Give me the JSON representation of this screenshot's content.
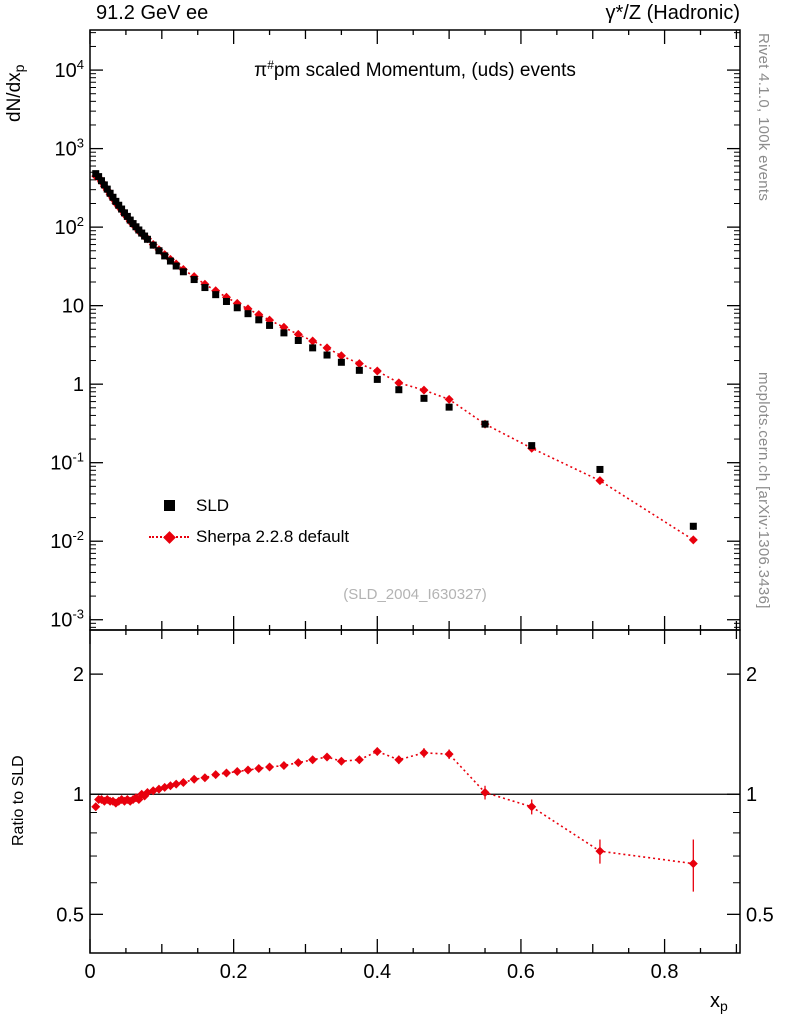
{
  "header": {
    "left": "91.2 GeV ee",
    "right": "γ*/Z (Hadronic)"
  },
  "title": {
    "prefix": "π",
    "sup": "#",
    "rest": "pm scaled Momentum, (uds) events"
  },
  "watermark": "(SLD_2004_I630327)",
  "side_notes": {
    "top": "Rivet 4.1.0,  100k events",
    "bottom": "mcplots.cern.ch [arXiv:1306.3436]"
  },
  "labels": {
    "y_main": {
      "text": "dN/dx",
      "sub": "p"
    },
    "y_ratio": "Ratio to SLD",
    "x": {
      "text": "x",
      "sub": "p"
    }
  },
  "legend": [
    {
      "label": "SLD",
      "marker": "filled-square",
      "color": "#000000"
    },
    {
      "label": "Sherpa 2.2.8 default",
      "marker": "filled-diamond",
      "color": "#e8000d",
      "line": "dotted"
    }
  ],
  "colors": {
    "data": "#000000",
    "mc": "#e8000d",
    "annotation": "#8c8c8c",
    "watermark": "#b3b3b3"
  },
  "axes": {
    "x_ticks": [
      0,
      0.2,
      0.4,
      0.6,
      0.8
    ],
    "x_minor_step": 0.05,
    "y_main_tick_exponents": [
      -3,
      -2,
      -1,
      0,
      1,
      2,
      3,
      4
    ],
    "y_ratio_ticks": [
      0.5,
      1,
      2
    ],
    "y_ratio_minor_ticks": [
      0.4,
      0.6,
      0.7,
      0.8,
      0.9
    ]
  },
  "chart_data": {
    "type": "scatter",
    "title": "π#pm scaled Momentum, (uds) events",
    "xlabel": "x_p",
    "ylabel_main": "dN/dx_p",
    "ylabel_ratio": "Ratio to SLD",
    "x_range": [
      0,
      0.905
    ],
    "y_main_scale": "log",
    "y_main_range": [
      0.00074,
      32400
    ],
    "y_ratio_scale": "log",
    "y_ratio_range": [
      0.4,
      2.58
    ],
    "legend_position": "left-middle",
    "grid": false,
    "x": [
      0.008,
      0.012,
      0.016,
      0.02,
      0.024,
      0.028,
      0.032,
      0.036,
      0.04,
      0.044,
      0.048,
      0.052,
      0.056,
      0.06,
      0.064,
      0.068,
      0.072,
      0.076,
      0.08,
      0.088,
      0.096,
      0.104,
      0.112,
      0.12,
      0.13,
      0.145,
      0.16,
      0.175,
      0.19,
      0.205,
      0.22,
      0.235,
      0.25,
      0.27,
      0.29,
      0.31,
      0.33,
      0.35,
      0.375,
      0.4,
      0.43,
      0.465,
      0.5,
      0.55,
      0.615,
      0.71,
      0.84
    ],
    "series": [
      {
        "name": "SLD",
        "marker": "filled-square",
        "color": "#000000",
        "values": [
          480,
          440,
          390,
          345,
          305,
          270,
          240,
          213,
          190,
          170,
          152,
          137,
          123,
          111,
          101,
          92,
          84,
          77,
          70,
          59,
          50,
          43,
          37,
          32,
          27,
          21.5,
          17,
          13.8,
          11.3,
          9.4,
          7.9,
          6.6,
          5.6,
          4.5,
          3.6,
          2.9,
          2.35,
          1.9,
          1.5,
          1.15,
          0.85,
          0.66,
          0.51,
          0.31,
          0.165,
          0.082,
          0.0155
        ]
      },
      {
        "name": "Sherpa 2.2.8 default",
        "marker": "filled-diamond",
        "color": "#e8000d",
        "line": "dotted",
        "values": [
          446,
          427,
          378,
          331,
          296,
          259,
          230,
          202,
          182,
          165,
          146,
          133,
          118,
          108,
          99,
          89,
          84,
          76,
          71,
          60,
          51.5,
          44.7,
          38.9,
          33.9,
          28.9,
          23.4,
          18.7,
          15.5,
          12.8,
          10.7,
          9.1,
          7.7,
          6.55,
          5.3,
          4.3,
          3.55,
          2.9,
          2.3,
          1.83,
          1.47,
          1.04,
          0.84,
          0.64,
          0.31,
          0.153,
          0.059,
          0.0104
        ]
      }
    ],
    "ratio": {
      "name": "Sherpa 2.2.8 default / SLD",
      "color": "#e8000d",
      "line": "dotted",
      "reference_line": 1,
      "values": [
        0.93,
        0.97,
        0.97,
        0.96,
        0.97,
        0.96,
        0.96,
        0.95,
        0.96,
        0.97,
        0.96,
        0.97,
        0.96,
        0.97,
        0.98,
        0.97,
        1.0,
        0.99,
        1.01,
        1.02,
        1.03,
        1.04,
        1.05,
        1.06,
        1.07,
        1.09,
        1.1,
        1.12,
        1.13,
        1.14,
        1.15,
        1.16,
        1.17,
        1.18,
        1.2,
        1.22,
        1.24,
        1.21,
        1.22,
        1.28,
        1.22,
        1.27,
        1.26,
        1.01,
        0.93,
        0.72,
        0.67
      ],
      "errors": [
        0.02,
        0.015,
        0.012,
        0.012,
        0.012,
        0.012,
        0.012,
        0.012,
        0.012,
        0.012,
        0.012,
        0.012,
        0.012,
        0.012,
        0.012,
        0.012,
        0.012,
        0.012,
        0.012,
        0.012,
        0.012,
        0.012,
        0.012,
        0.012,
        0.013,
        0.013,
        0.014,
        0.014,
        0.015,
        0.015,
        0.016,
        0.017,
        0.018,
        0.018,
        0.02,
        0.022,
        0.024,
        0.025,
        0.027,
        0.03,
        0.03,
        0.035,
        0.035,
        0.04,
        0.04,
        0.05,
        0.1
      ]
    }
  }
}
